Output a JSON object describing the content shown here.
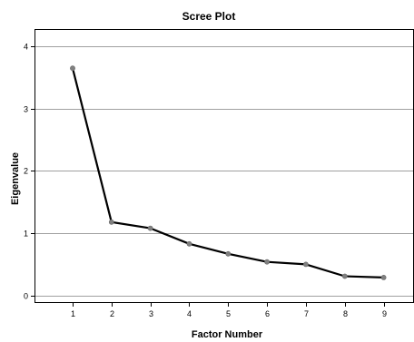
{
  "chart_data": {
    "type": "line",
    "title": "Scree Plot",
    "xlabel": "Factor Number",
    "ylabel": "Eigenvalue",
    "x": [
      1,
      2,
      3,
      4,
      5,
      6,
      7,
      8,
      9
    ],
    "series": [
      {
        "values": [
          3.65,
          1.18,
          1.08,
          0.83,
          0.67,
          0.54,
          0.5,
          0.31,
          0.29
        ]
      }
    ],
    "x_ticks": [
      "1",
      "2",
      "3",
      "4",
      "5",
      "6",
      "7",
      "8",
      "9"
    ],
    "y_ticks": [
      "0",
      "1",
      "2",
      "3",
      "4"
    ],
    "ylim": [
      -0.12,
      4.28
    ],
    "xlim": [
      0.02,
      9.78
    ],
    "grid": "horizontal",
    "line_color": "#000000",
    "marker_color": "#808080",
    "grid_color": "#a0a0a0"
  }
}
